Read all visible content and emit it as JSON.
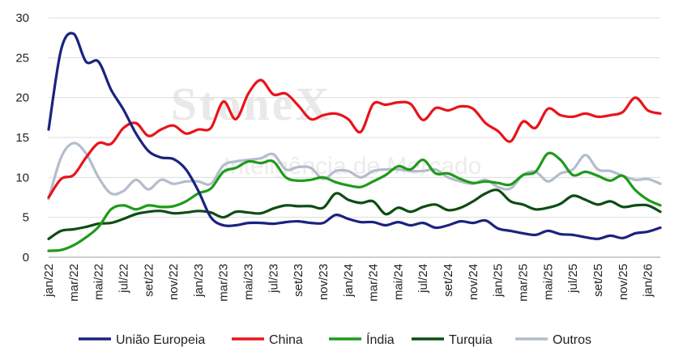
{
  "watermark": {
    "brand": "StoneX",
    "tagline": "Inteligência de Mercado"
  },
  "colors": {
    "uniao": "#1a237e",
    "china": "#e8141b",
    "india": "#1f9a1a",
    "turquia": "#0d4d12",
    "outros": "#b4bccd",
    "grid": "#dcdcdc",
    "axis": "#9e9e9e"
  },
  "chart_data": {
    "type": "line",
    "ylim": [
      0,
      30
    ],
    "yticks": [
      0,
      5,
      10,
      15,
      20,
      25,
      30
    ],
    "grid": "horizontal",
    "legend": "bottom",
    "x": [
      "jan/22",
      "fev/22",
      "mar/22",
      "abr/22",
      "mai/22",
      "jun/22",
      "jul/22",
      "ago/22",
      "set/22",
      "out/22",
      "nov/22",
      "dez/22",
      "jan/23",
      "fev/23",
      "mar/23",
      "abr/23",
      "mai/23",
      "jun/23",
      "jul/23",
      "ago/23",
      "set/23",
      "out/23",
      "nov/23",
      "dez/23",
      "jan/24",
      "fev/24",
      "mar/24",
      "abr/24",
      "mai/24",
      "jun/24",
      "jul/24",
      "ago/24",
      "set/24",
      "out/24",
      "nov/24",
      "dez/24",
      "jan/25",
      "fev/25",
      "mar/25",
      "abr/25",
      "mai/25",
      "jun/25",
      "jul/25",
      "ago/25",
      "set/25",
      "out/25",
      "nov/25",
      "dez/25",
      "jan/26",
      "fev/26"
    ],
    "xtick_labels": [
      "jan/22",
      "mar/22",
      "mai/22",
      "jul/22",
      "set/22",
      "nov/22",
      "jan/23",
      "mar/23",
      "mai/23",
      "jul/23",
      "set/23",
      "nov/23",
      "jan/24",
      "mar/24",
      "mai/24",
      "jul/24",
      "set/24",
      "nov/24",
      "jan/25",
      "mar/25",
      "mai/25",
      "jul/25",
      "set/25",
      "nov/25",
      "jan/26"
    ],
    "series": [
      {
        "key": "uniao",
        "name": "União Europeia",
        "values": [
          16,
          26,
          28,
          24.5,
          24.5,
          21,
          18.5,
          15.5,
          13.3,
          12.5,
          12.3,
          11,
          8.3,
          5,
          4,
          4,
          4.3,
          4.3,
          4.2,
          4.4,
          4.5,
          4.3,
          4.3,
          5.3,
          4.8,
          4.4,
          4.4,
          4,
          4.4,
          4,
          4.3,
          3.7,
          4,
          4.5,
          4.3,
          4.6,
          3.6,
          3.3,
          3,
          2.8,
          3.3,
          2.9,
          2.8,
          2.5,
          2.3,
          2.7,
          2.4,
          3,
          3.2,
          3.7
        ]
      },
      {
        "key": "china",
        "name": "China",
        "values": [
          7.5,
          9.8,
          10.3,
          12.5,
          14.3,
          14.2,
          16.2,
          16.8,
          15.2,
          16,
          16.5,
          15.5,
          16,
          16.2,
          19.5,
          17.3,
          20.5,
          22.2,
          20.4,
          20.5,
          19,
          17.3,
          17.8,
          18,
          17.3,
          15.7,
          19.2,
          19.1,
          19.4,
          19.2,
          17.2,
          18.7,
          18.4,
          18.9,
          18.6,
          16.8,
          15.8,
          14.5,
          17,
          16.2,
          18.6,
          17.8,
          17.6,
          18,
          17.6,
          17.8,
          18.2,
          20,
          18.4,
          18
        ]
      },
      {
        "key": "india",
        "name": "Índia",
        "values": [
          0.8,
          0.9,
          1.5,
          2.5,
          3.8,
          6,
          6.5,
          6,
          6.5,
          6.3,
          6.4,
          7,
          8,
          8.6,
          10.7,
          11.2,
          12,
          11.8,
          12,
          10,
          9.6,
          9.7,
          10,
          9.4,
          9,
          8.8,
          9.5,
          10.3,
          11.4,
          11,
          12.2,
          10.5,
          10.5,
          9.8,
          9.3,
          9.5,
          9.3,
          9.1,
          10.3,
          10.7,
          13,
          12.2,
          10.3,
          10.7,
          10.2,
          9.6,
          10.2,
          8.4,
          7.2,
          6.5
        ]
      },
      {
        "key": "turquia",
        "name": "Turquia",
        "values": [
          2.3,
          3.3,
          3.5,
          3.8,
          4.2,
          4.3,
          4.8,
          5.4,
          5.7,
          5.8,
          5.5,
          5.6,
          5.8,
          5.6,
          5,
          5.7,
          5.6,
          5.5,
          6.1,
          6.5,
          6.4,
          6.4,
          6.2,
          8,
          7.2,
          6.8,
          7,
          5.4,
          6.2,
          5.7,
          6.3,
          6.6,
          5.9,
          6.2,
          7,
          8,
          8.4,
          7,
          6.6,
          6,
          6.2,
          6.7,
          7.7,
          7.2,
          6.6,
          7,
          6.3,
          6.5,
          6.5,
          5.7
        ]
      },
      {
        "key": "outros",
        "name": "Outros",
        "values": [
          7.3,
          12.5,
          14.3,
          13,
          10,
          8,
          8.3,
          9.7,
          8.5,
          9.7,
          9.2,
          9.5,
          9.5,
          9.2,
          11.5,
          12,
          12.2,
          12.4,
          12.9,
          11,
          11.3,
          11.2,
          9.8,
          10.8,
          10.8,
          10,
          10.8,
          11,
          11,
          10.8,
          10.8,
          11,
          10,
          9.5,
          9.2,
          9.7,
          8.8,
          8.6,
          10.3,
          10.7,
          9.5,
          10.5,
          11,
          12.8,
          11,
          10.8,
          10.2,
          9.7,
          9.8,
          9.2
        ]
      }
    ]
  }
}
